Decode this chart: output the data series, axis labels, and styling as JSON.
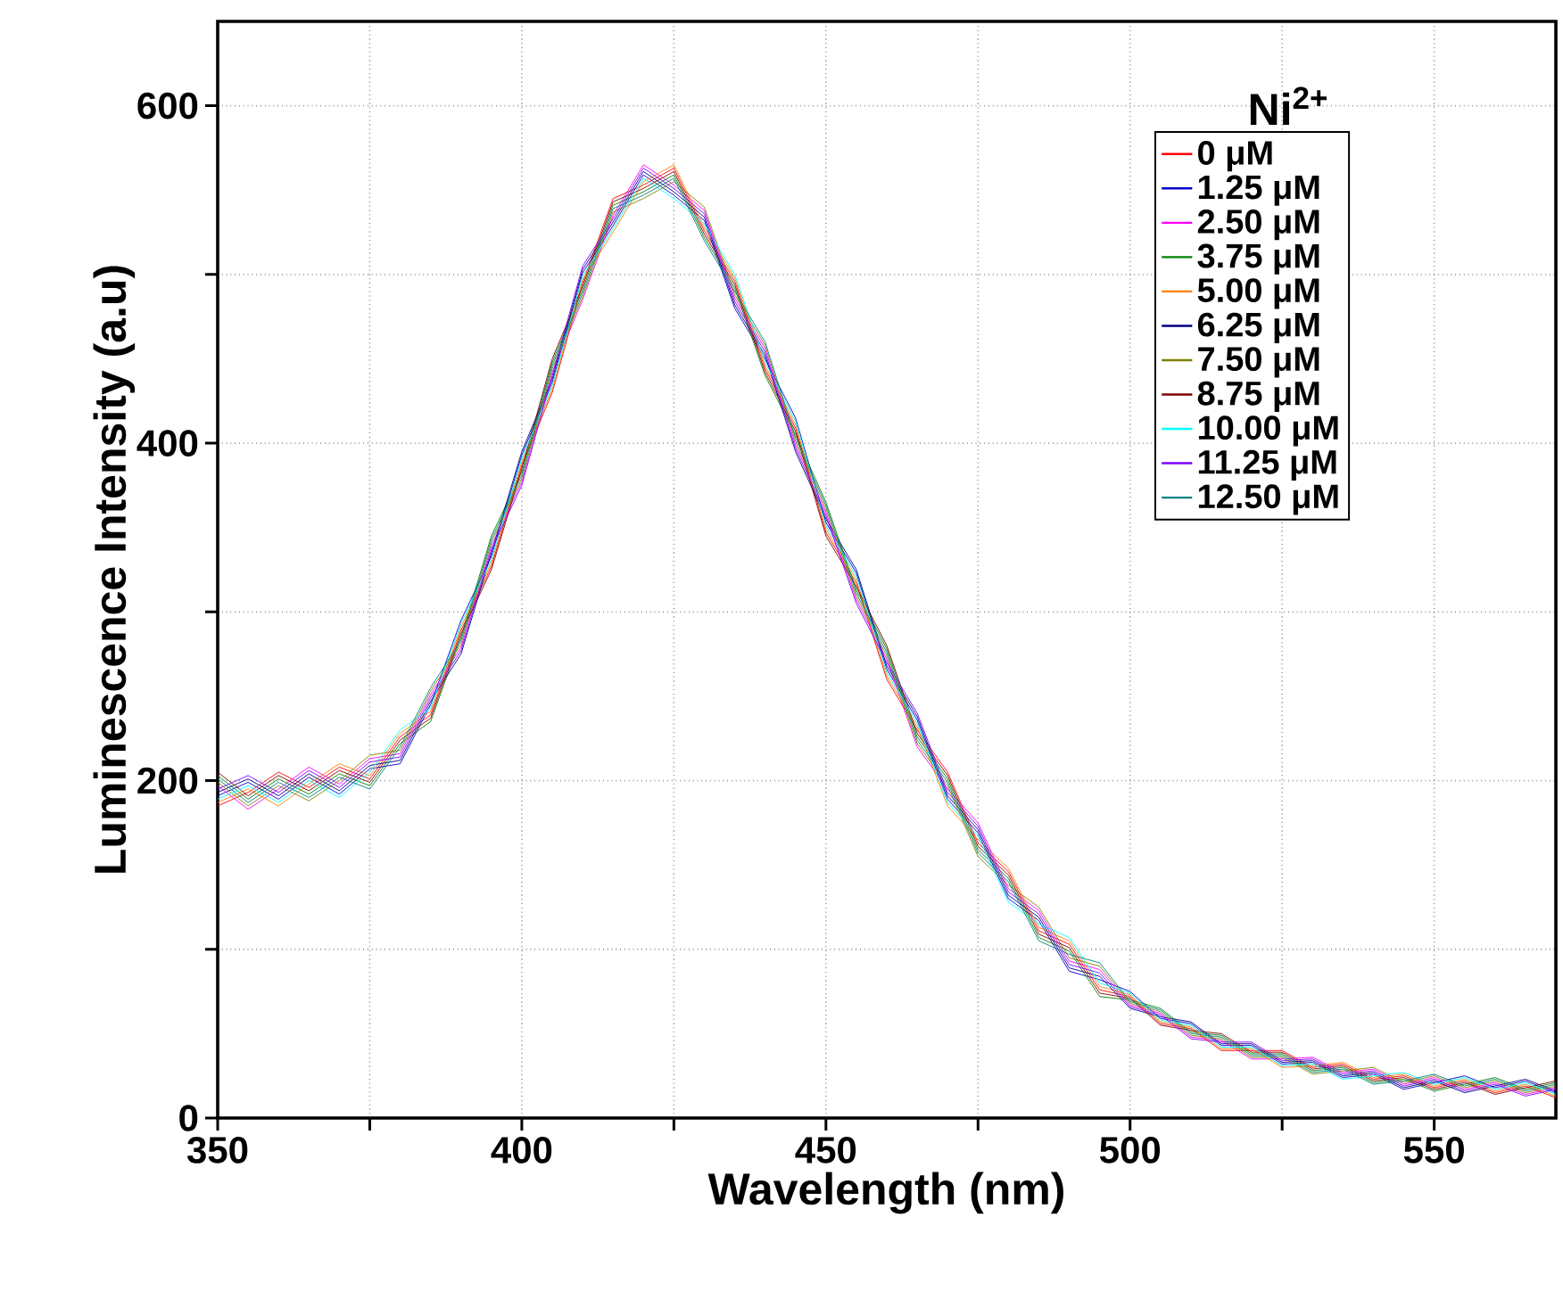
{
  "chart_data": {
    "type": "line",
    "xlabel": "Wavelength (nm)",
    "ylabel": "Luminescence Intensity (a.u)",
    "legend_title": "Ni$^{2+}$",
    "legend": "top right",
    "grid": true,
    "line_style": "solid",
    "marker": "none",
    "xlim": [
      350,
      570
    ],
    "ylim": [
      0,
      650
    ],
    "xticks": [
      350,
      {
        "value": 375,
        "label": null
      },
      400,
      {
        "value": 425,
        "label": null
      },
      450,
      {
        "value": 475,
        "label": null
      },
      500,
      {
        "value": 525,
        "label": null
      },
      550
    ],
    "yticks": [
      0,
      {
        "value": 100,
        "label": null
      },
      200,
      {
        "value": 300,
        "label": null
      },
      400,
      {
        "value": 500,
        "label": null
      },
      600
    ],
    "x": [
      350,
      355,
      360,
      365,
      370,
      375,
      380,
      385,
      390,
      395,
      400,
      405,
      410,
      415,
      420,
      425,
      430,
      435,
      440,
      445,
      450,
      455,
      460,
      465,
      470,
      475,
      480,
      485,
      490,
      495,
      500,
      505,
      510,
      515,
      520,
      525,
      530,
      535,
      540,
      545,
      550,
      555,
      560,
      565,
      570
    ],
    "series": [
      {
        "name": "0 μM",
        "color": "#ff0000",
        "values": [
          185,
          193,
          205,
          196,
          208,
          201,
          226,
          239,
          289,
          327,
          387,
          430,
          495,
          545,
          553,
          563,
          526,
          496,
          444,
          409,
          347,
          317,
          260,
          230,
          205,
          163,
          146,
          111,
          103,
          76,
          72,
          56,
          53,
          40,
          40,
          40,
          30,
          32,
          23,
          25,
          18,
          22,
          15,
          19,
          12
        ]
      },
      {
        "name": "1.25 μM",
        "color": "#0000cc",
        "values": [
          191,
          199,
          189,
          202,
          192,
          207,
          210,
          245,
          295,
          333,
          393,
          436,
          501,
          529,
          559,
          547,
          532,
          480,
          450,
          415,
          353,
          323,
          266,
          236,
          189,
          169,
          130,
          117,
          87,
          82,
          75,
          59,
          56,
          43,
          43,
          32,
          33,
          24,
          26,
          17,
          21,
          25,
          18,
          22,
          15
        ]
      },
      {
        "name": "2.50 μM",
        "color": "#ff00ff",
        "values": [
          197,
          183,
          195,
          208,
          198,
          213,
          216,
          251,
          279,
          339,
          377,
          442,
          485,
          535,
          565,
          553,
          538,
          486,
          456,
          399,
          359,
          307,
          272,
          220,
          195,
          175,
          136,
          123,
          93,
          88,
          67,
          62,
          48,
          46,
          35,
          35,
          36,
          27,
          29,
          20,
          24,
          17,
          21,
          14,
          18
        ]
      },
      {
        "name": "3.75 μM",
        "color": "#008000",
        "values": [
          203,
          189,
          201,
          192,
          204,
          197,
          222,
          235,
          285,
          345,
          383,
          448,
          491,
          541,
          549,
          559,
          522,
          492,
          440,
          405,
          365,
          313,
          278,
          226,
          201,
          159,
          142,
          107,
          99,
          72,
          70,
          65,
          51,
          49,
          38,
          38,
          28,
          30,
          21,
          23,
          16,
          20,
          24,
          17,
          21
        ]
      },
      {
        "name": "5.00 μM",
        "color": "#ff8000",
        "values": [
          187,
          195,
          185,
          198,
          210,
          203,
          228,
          241,
          291,
          329,
          389,
          432,
          497,
          525,
          555,
          565,
          528,
          498,
          446,
          411,
          349,
          319,
          262,
          232,
          185,
          165,
          148,
          113,
          105,
          78,
          73,
          57,
          54,
          41,
          41,
          30,
          31,
          33,
          24,
          26,
          19,
          23,
          16,
          20,
          13
        ]
      },
      {
        "name": "6.25 μM",
        "color": "#000080",
        "values": [
          193,
          201,
          191,
          204,
          194,
          209,
          212,
          247,
          275,
          335,
          395,
          438,
          503,
          531,
          561,
          549,
          534,
          482,
          452,
          395,
          355,
          325,
          268,
          238,
          191,
          171,
          132,
          119,
          89,
          84,
          65,
          60,
          57,
          44,
          44,
          33,
          34,
          25,
          27,
          18,
          22,
          15,
          19,
          23,
          16
        ]
      },
      {
        "name": "7.50 μM",
        "color": "#808000",
        "values": [
          199,
          185,
          197,
          188,
          200,
          215,
          218,
          253,
          281,
          341,
          379,
          444,
          487,
          537,
          545,
          555,
          540,
          488,
          458,
          401,
          361,
          309,
          274,
          222,
          197,
          155,
          138,
          125,
          95,
          90,
          68,
          63,
          49,
          47,
          36,
          36,
          26,
          28,
          30,
          21,
          25,
          18,
          22,
          15,
          19
        ]
      },
      {
        "name": "8.75 μM",
        "color": "#800000",
        "values": [
          205,
          191,
          203,
          194,
          206,
          199,
          224,
          237,
          287,
          325,
          385,
          450,
          493,
          543,
          551,
          561,
          524,
          494,
          442,
          407,
          345,
          315,
          280,
          228,
          203,
          161,
          144,
          109,
          101,
          74,
          71,
          55,
          52,
          50,
          39,
          39,
          29,
          31,
          22,
          24,
          17,
          21,
          14,
          18,
          22
        ]
      },
      {
        "name": "10.00 μM",
        "color": "#00ffff",
        "values": [
          189,
          197,
          187,
          200,
          190,
          205,
          230,
          243,
          293,
          331,
          391,
          434,
          499,
          527,
          557,
          545,
          530,
          500,
          448,
          413,
          351,
          321,
          264,
          234,
          187,
          167,
          128,
          115,
          107,
          80,
          74,
          58,
          55,
          42,
          42,
          31,
          32,
          23,
          25,
          27,
          20,
          24,
          17,
          21,
          14
        ]
      },
      {
        "name": "11.25 μM",
        "color": "#8000ff",
        "values": [
          195,
          203,
          193,
          206,
          196,
          211,
          214,
          249,
          277,
          337,
          375,
          440,
          505,
          533,
          563,
          551,
          536,
          484,
          454,
          397,
          357,
          305,
          270,
          240,
          193,
          173,
          134,
          121,
          91,
          86,
          66,
          61,
          47,
          45,
          45,
          34,
          35,
          26,
          28,
          19,
          23,
          16,
          20,
          13,
          17
        ]
      },
      {
        "name": "12.50 μM",
        "color": "#008080",
        "values": [
          201,
          187,
          199,
          190,
          202,
          195,
          220,
          255,
          283,
          343,
          381,
          446,
          489,
          539,
          547,
          557,
          520,
          490,
          460,
          403,
          363,
          311,
          276,
          224,
          199,
          157,
          140,
          105,
          97,
          92,
          69,
          64,
          50,
          48,
          37,
          37,
          27,
          29,
          20,
          22,
          26,
          19,
          23,
          16,
          20
        ]
      }
    ]
  }
}
